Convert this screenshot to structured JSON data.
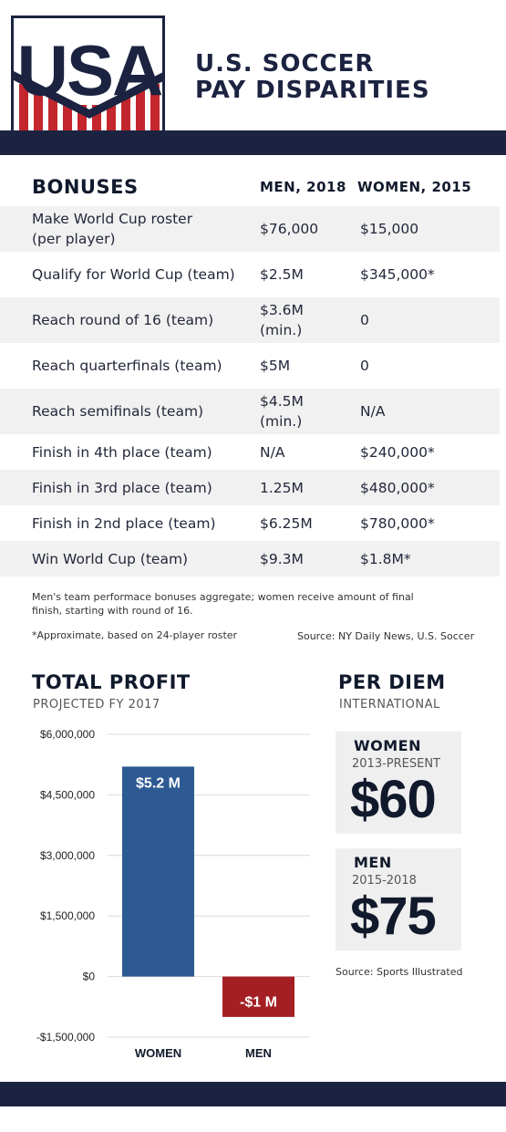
{
  "header": {
    "logo_text": "USA",
    "title_line1": "U.S. SOCCER",
    "title_line2": "PAY DISPARITIES"
  },
  "colors": {
    "navy": "#1b2340",
    "red": "#c4262e",
    "women_bar": "#2e5a93",
    "men_bar": "#a41f24"
  },
  "bonuses": {
    "headers": [
      "BONUSES",
      "MEN, 2018",
      "WOMEN, 2015"
    ],
    "rows": [
      {
        "label": [
          "Make World Cup roster",
          "(per player)"
        ],
        "men": [
          "$76,000"
        ],
        "women": "$15,000",
        "shaded": true
      },
      {
        "label": [
          "Qualify for World Cup (team)"
        ],
        "men": [
          "$2.5M"
        ],
        "women": "$345,000*",
        "shaded": false
      },
      {
        "label": [
          "Reach round of 16 (team)"
        ],
        "men": [
          "$3.6M",
          "(min.)"
        ],
        "women": "0",
        "shaded": true
      },
      {
        "label": [
          "Reach quarterfinals (team)"
        ],
        "men": [
          "$5M"
        ],
        "women": "0",
        "shaded": false
      },
      {
        "label": [
          "Reach semifinals (team)"
        ],
        "men": [
          "$4.5M",
          "(min.)"
        ],
        "women": "N/A",
        "shaded": true
      },
      {
        "label": [
          "Finish in 4th place (team)"
        ],
        "men": [
          "N/A"
        ],
        "women": "$240,000*",
        "shaded": false
      },
      {
        "label": [
          "Finish in 3rd place (team)"
        ],
        "men": [
          "1.25M"
        ],
        "women": "$480,000*",
        "shaded": true
      },
      {
        "label": [
          "Finish in 2nd place (team)"
        ],
        "men": [
          "$6.25M"
        ],
        "women": "$780,000*",
        "shaded": false
      },
      {
        "label": [
          "Win World Cup (team)"
        ],
        "men": [
          "$9.3M"
        ],
        "women": "$1.8M*",
        "shaded": true
      }
    ],
    "note": "Men's team performace bonuses aggregate; women receive amount of final finish, starting with round of 16.",
    "footnote": "*Approximate, based on 24-player roster",
    "source": "Source: NY Daily News, U.S. Soccer"
  },
  "chart_data": {
    "type": "bar",
    "title": "TOTAL PROFIT",
    "subtitle": "PROJECTED FY 2017",
    "categories": [
      "WOMEN",
      "MEN"
    ],
    "values": [
      5200000,
      -1000000
    ],
    "data_labels": [
      "$5.2 M",
      "-$1 M"
    ],
    "ylim": [
      -1500000,
      6000000
    ],
    "yticks": [
      6000000,
      4500000,
      3000000,
      1500000,
      0,
      -1500000
    ],
    "ytick_labels": [
      "$6,000,000",
      "$4,500,000",
      "$3,000,000",
      "$1,500,000",
      "$0",
      "-$1,500,000"
    ],
    "grid": true
  },
  "per_diem": {
    "title": "PER DIEM",
    "subtitle": "INTERNATIONAL",
    "cards": [
      {
        "label": "WOMEN",
        "years": "2013-PRESENT",
        "amount": "$60"
      },
      {
        "label": "MEN",
        "years": "2015-2018",
        "amount": "$75"
      }
    ],
    "source": "Source: Sports Illustrated"
  }
}
